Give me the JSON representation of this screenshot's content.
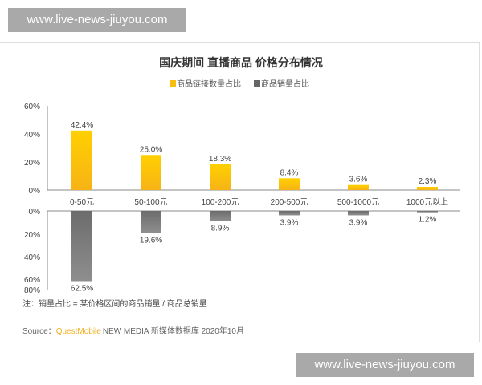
{
  "watermark_text": "www.live-news-jiuyou.com",
  "chart_data": {
    "type": "bar",
    "title": "国庆期间 直播商品 价格分布情况",
    "categories": [
      "0-50元",
      "50-100元",
      "100-200元",
      "200-500元",
      "500-1000元",
      "1000元以上"
    ],
    "series": [
      {
        "name": "商品链接数量占比",
        "values": [
          42.4,
          25.0,
          18.3,
          8.4,
          3.6,
          2.3
        ],
        "color": "#f9bd0c",
        "ylim": [
          0,
          60
        ],
        "ticks": [
          "60%",
          "40%",
          "20%",
          "0%"
        ],
        "direction": "up"
      },
      {
        "name": "商品销量占比",
        "values": [
          62.5,
          19.6,
          8.9,
          3.9,
          3.9,
          1.2
        ],
        "color": "#7a7a7a",
        "ylim": [
          0,
          80
        ],
        "ticks": [
          "0%",
          "20%",
          "40%",
          "60%",
          "80%"
        ],
        "direction": "down"
      }
    ],
    "legend": "top-center",
    "grid": false,
    "note": "注：销量占比 = 某价格区间的商品销量 / 商品总销量",
    "source_prefix": "Source：",
    "source_brand": "QuestMobile",
    "source_rest": "NEW MEDIA 新媒体数据库 2020年10月"
  }
}
